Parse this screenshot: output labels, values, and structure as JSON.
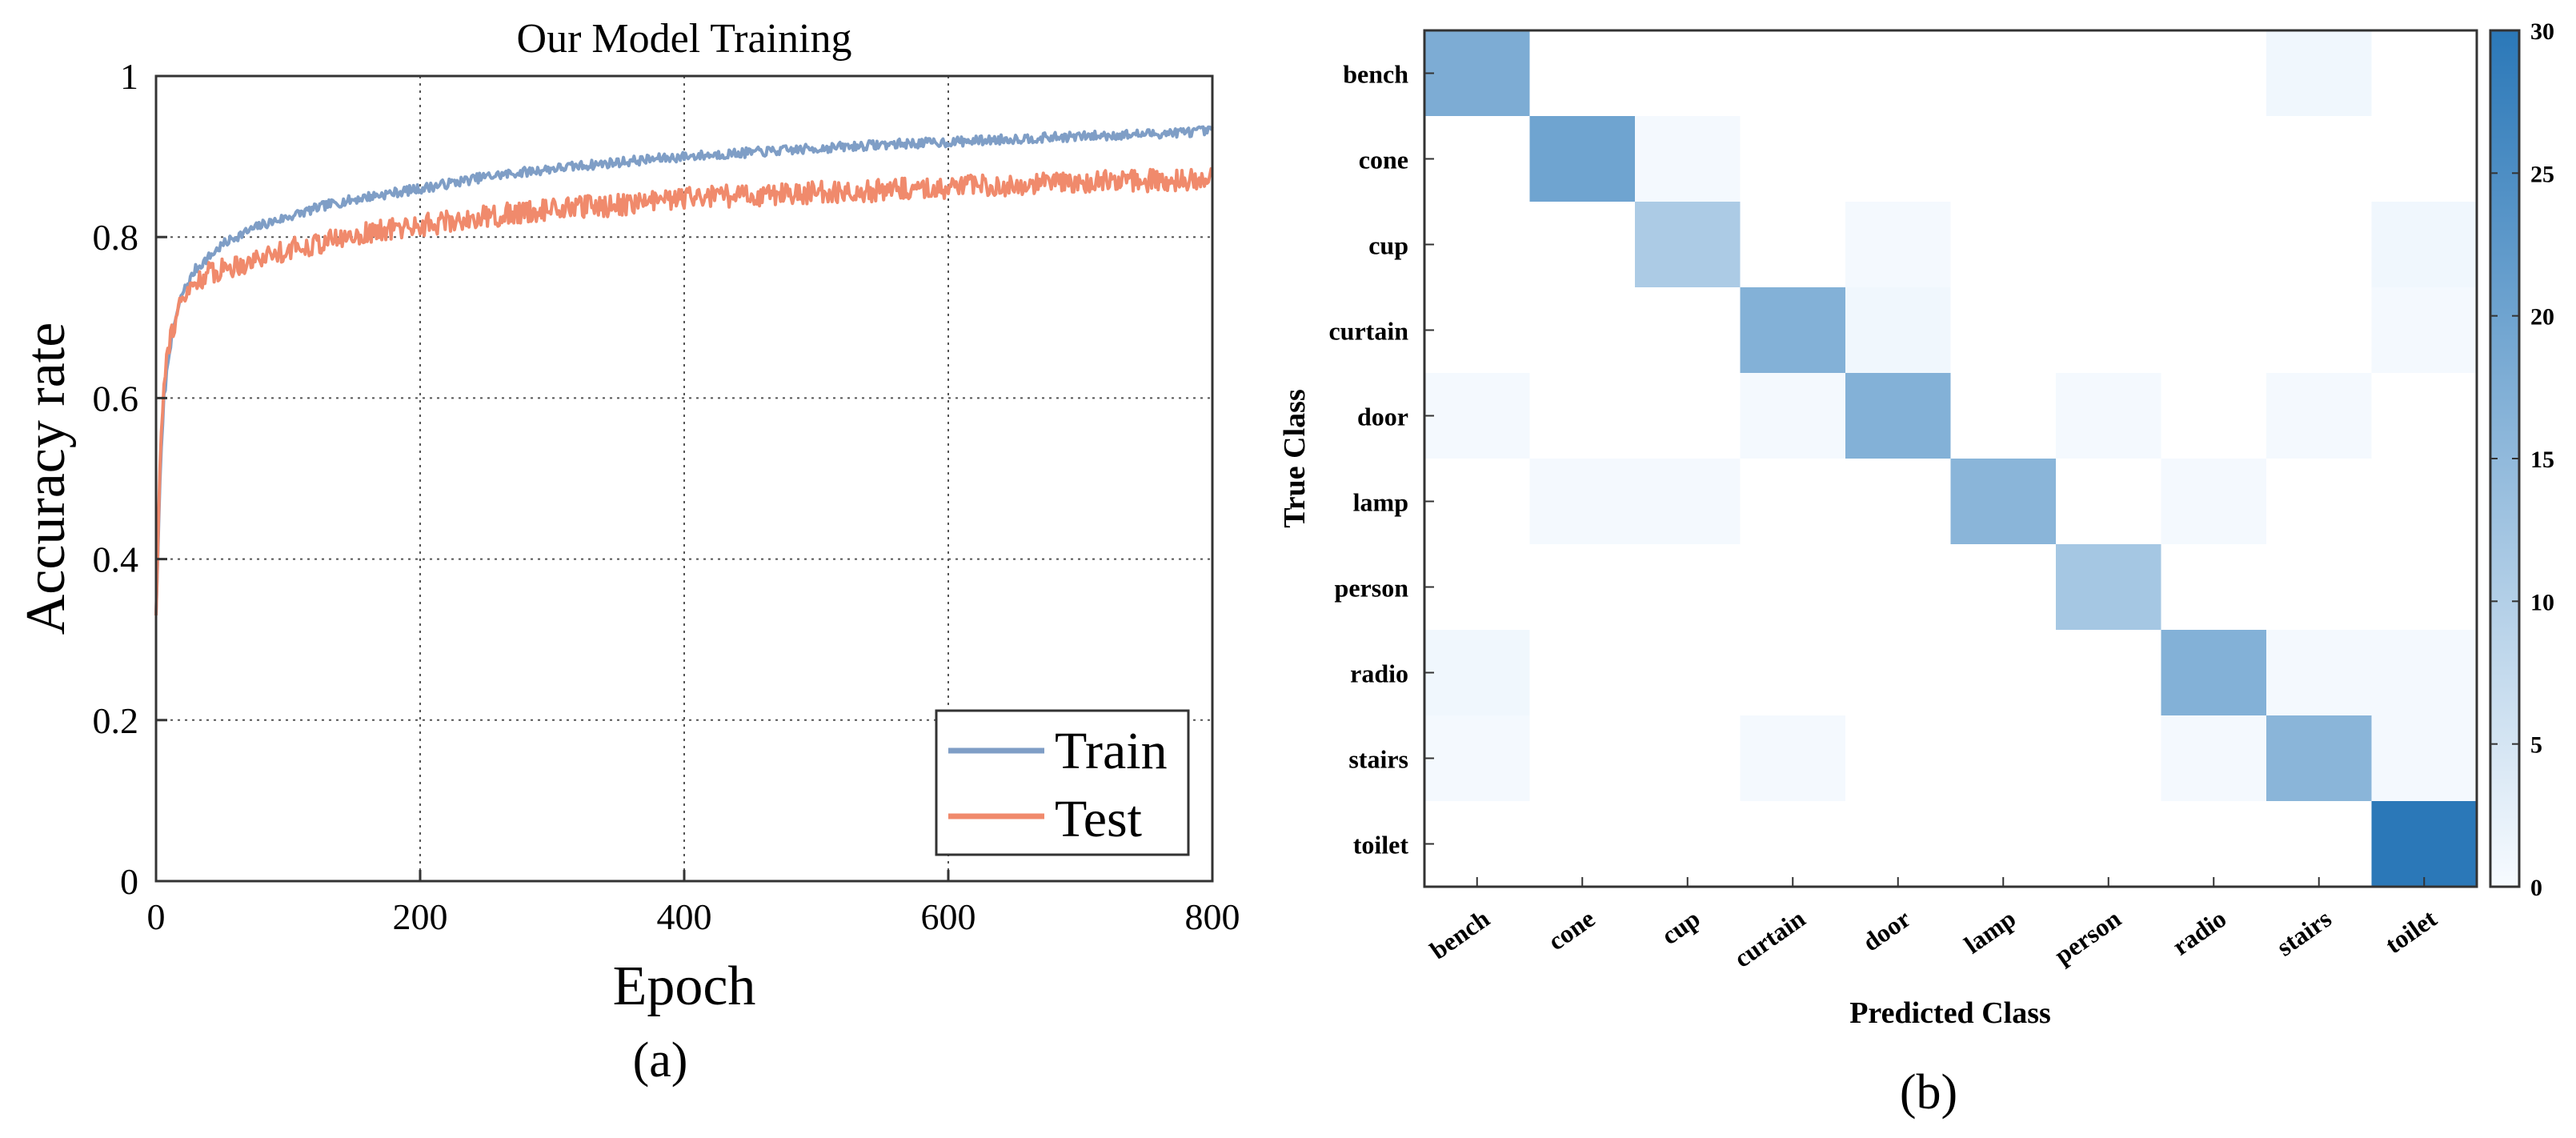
{
  "chart_data": [
    {
      "type": "line",
      "title": "Our Model Training",
      "xlabel": "Epoch",
      "ylabel": "Accuracy rate",
      "xlim": [
        0,
        800
      ],
      "ylim": [
        0,
        1
      ],
      "xticks": [
        0,
        200,
        400,
        600,
        800
      ],
      "yticks": [
        0,
        0.2,
        0.4,
        0.6,
        0.8,
        1
      ],
      "ytick_labels": [
        "0",
        "0.2",
        "0.4",
        "0.6",
        "0.8",
        "1"
      ],
      "grid": true,
      "legend_position": "bottom-right",
      "caption": "(a)",
      "series": [
        {
          "name": "Train",
          "color": "#7f9ec6",
          "x": [
            0,
            3,
            6,
            10,
            15,
            20,
            30,
            40,
            50,
            60,
            80,
            100,
            130,
            160,
            200,
            250,
            300,
            350,
            400,
            450,
            500,
            550,
            600,
            650,
            700,
            750,
            800
          ],
          "values": [
            0.33,
            0.5,
            0.6,
            0.66,
            0.7,
            0.73,
            0.76,
            0.775,
            0.79,
            0.8,
            0.815,
            0.825,
            0.84,
            0.85,
            0.86,
            0.875,
            0.885,
            0.893,
            0.9,
            0.905,
            0.91,
            0.915,
            0.918,
            0.922,
            0.925,
            0.928,
            0.932
          ]
        },
        {
          "name": "Test",
          "color": "#f08a6c",
          "x": [
            0,
            3,
            6,
            10,
            15,
            20,
            30,
            40,
            50,
            60,
            80,
            100,
            130,
            160,
            200,
            250,
            300,
            350,
            400,
            450,
            500,
            550,
            600,
            650,
            700,
            750,
            800
          ],
          "values": [
            0.33,
            0.52,
            0.63,
            0.67,
            0.7,
            0.72,
            0.745,
            0.755,
            0.76,
            0.765,
            0.775,
            0.785,
            0.795,
            0.805,
            0.815,
            0.825,
            0.835,
            0.84,
            0.848,
            0.852,
            0.855,
            0.858,
            0.862,
            0.865,
            0.868,
            0.87,
            0.872
          ]
        }
      ]
    },
    {
      "type": "heatmap",
      "caption": "(b)",
      "xlabel": "Predicted Class",
      "ylabel": "True Class",
      "row_labels": [
        "bench",
        "cone",
        "cup",
        "curtain",
        "door",
        "lamp",
        "person",
        "radio",
        "stairs",
        "toilet"
      ],
      "col_labels": [
        "bench",
        "cone",
        "cup",
        "curtain",
        "door",
        "lamp",
        "person",
        "radio",
        "stairs",
        "toilet"
      ],
      "matrix": [
        [
          18,
          0,
          0,
          0,
          0,
          0,
          0,
          0,
          1,
          0
        ],
        [
          0,
          20,
          0.5,
          0,
          0,
          0,
          0,
          0,
          0,
          0
        ],
        [
          0,
          0,
          11,
          0,
          0.5,
          0,
          0,
          0,
          0,
          1
        ],
        [
          0,
          0,
          0,
          17,
          1,
          0,
          0,
          0,
          0,
          0.5
        ],
        [
          0.5,
          0,
          0,
          0.5,
          17,
          0,
          0.5,
          0,
          0.5,
          0
        ],
        [
          0,
          0.5,
          0.5,
          0,
          0,
          16,
          0,
          0.5,
          0,
          0
        ],
        [
          0,
          0,
          0,
          0,
          0,
          0,
          12,
          0,
          0,
          0
        ],
        [
          1,
          0,
          0,
          0,
          0,
          0,
          0,
          17,
          0.5,
          0.5
        ],
        [
          0.5,
          0,
          0,
          0.5,
          0,
          0,
          0,
          0.5,
          16,
          0.5
        ],
        [
          0,
          0,
          0,
          0,
          0,
          0,
          0,
          0,
          0,
          30
        ]
      ],
      "colorbar": {
        "min": 0,
        "max": 30,
        "ticks": [
          0,
          5,
          10,
          15,
          20,
          25,
          30
        ],
        "low_color": "#f7fbff",
        "high_color": "#2b78b8"
      }
    }
  ]
}
